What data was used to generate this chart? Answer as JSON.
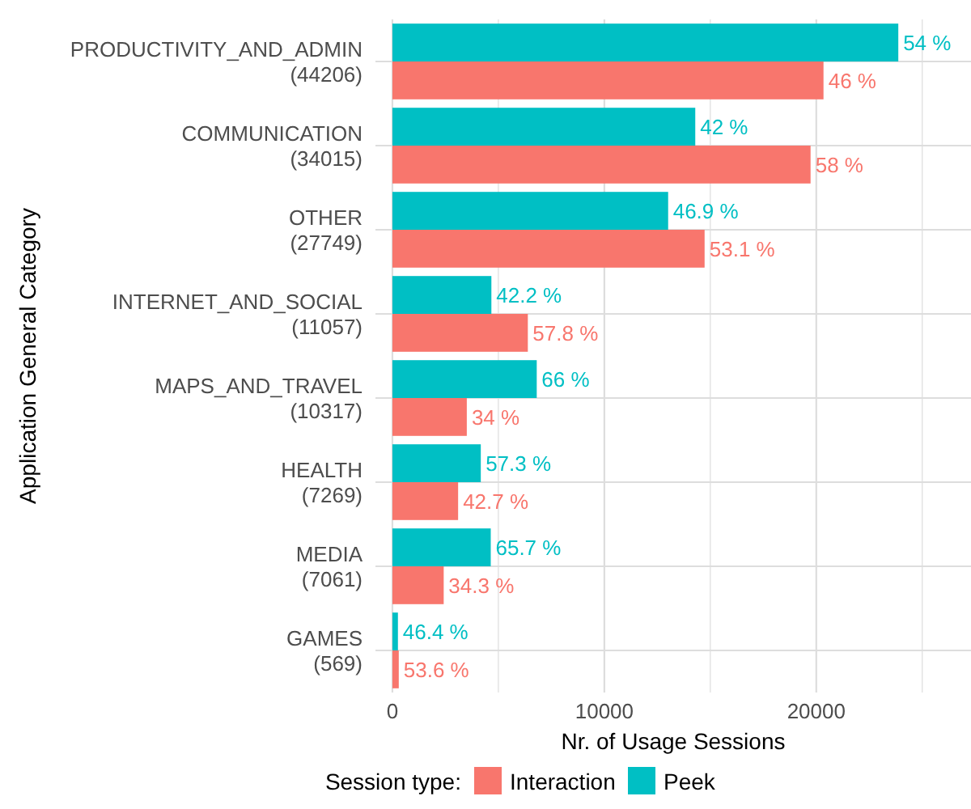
{
  "chart_data": {
    "type": "bar",
    "orientation": "horizontal",
    "xlabel": "Nr. of Usage Sessions",
    "ylabel": "Application General Category",
    "legend_title": "Session type:",
    "legend": "bottom",
    "grid": true,
    "categories": [
      "PRODUCTIVITY_AND_ADMIN\n(44206)",
      "COMMUNICATION\n(34015)",
      "OTHER\n(27749)",
      "INTERNET_AND_SOCIAL\n(11057)",
      "MAPS_AND_TRAVEL\n(10317)",
      "HEALTH\n(7269)",
      "MEDIA\n(7061)",
      "GAMES\n(569)"
    ],
    "xlim": [
      -800,
      27300
    ],
    "xticks": [
      0,
      {
        "value": 5000,
        "label": null
      },
      10000,
      {
        "value": 15000,
        "label": null
      },
      20000,
      {
        "value": 25000,
        "label": null
      }
    ],
    "series": [
      {
        "name": "Interaction",
        "color": "#f8766d",
        "values": [
          20340,
          19730,
          14730,
          6390,
          3510,
          3100,
          2420,
          300
        ]
      },
      {
        "name": "Peek",
        "color": "#00bfc4",
        "values": [
          23870,
          14290,
          13010,
          4670,
          6810,
          4170,
          4640,
          260
        ]
      }
    ],
    "annotations": [
      {
        "text": "46 %",
        "x": 20340,
        "y": "PRODUCTIVITY_AND_ADMIN\n(44206)"
      },
      {
        "text": "54 %",
        "x": 23870,
        "y": "PRODUCTIVITY_AND_ADMIN\n(44206)"
      },
      {
        "text": "58 %",
        "x": 19730,
        "y": "COMMUNICATION\n(34015)"
      },
      {
        "text": "42 %",
        "x": 14290,
        "y": "COMMUNICATION\n(34015)"
      },
      {
        "text": "53.1 %",
        "x": 14730,
        "y": "OTHER\n(27749)"
      },
      {
        "text": "46.9 %",
        "x": 13010,
        "y": "OTHER\n(27749)"
      },
      {
        "text": "57.8 %",
        "x": 6390,
        "y": "INTERNET_AND_SOCIAL\n(11057)"
      },
      {
        "text": "42.2 %",
        "x": 4670,
        "y": "INTERNET_AND_SOCIAL\n(11057)"
      },
      {
        "text": "34 %",
        "x": 3510,
        "y": "MAPS_AND_TRAVEL\n(10317)"
      },
      {
        "text": "66 %",
        "x": 6810,
        "y": "MAPS_AND_TRAVEL\n(10317)"
      },
      {
        "text": "42.7 %",
        "x": 3100,
        "y": "HEALTH\n(7269)"
      },
      {
        "text": "57.3 %",
        "x": 4170,
        "y": "HEALTH\n(7269)"
      },
      {
        "text": "34.3 %",
        "x": 2420,
        "y": "MEDIA\n(7061)"
      },
      {
        "text": "65.7 %",
        "x": 4640,
        "y": "MEDIA\n(7061)"
      },
      {
        "text": "53.6 %",
        "x": 300,
        "y": "GAMES\n(569)"
      },
      {
        "text": "46.4 %",
        "x": 260,
        "y": "GAMES\n(569)"
      }
    ]
  }
}
